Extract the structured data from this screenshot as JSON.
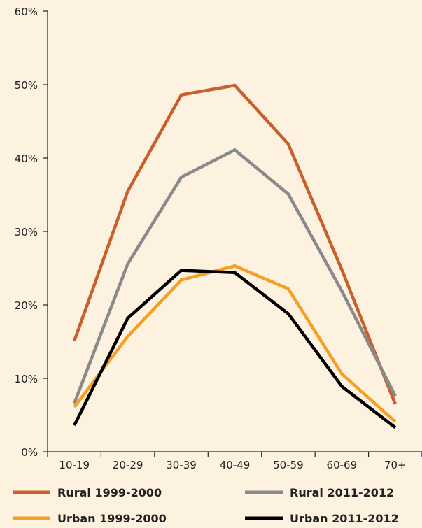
{
  "chart_data": {
    "type": "line",
    "categories": [
      "10-19",
      "20-29",
      "30-39",
      "40-49",
      "50-59",
      "60-69",
      "70+"
    ],
    "series": [
      {
        "name": "Rural 1999-2000",
        "color": "#c8602c",
        "values": [
          15.1,
          35.5,
          48.6,
          49.9,
          41.9,
          24.8,
          6.5
        ]
      },
      {
        "name": "Rural 2011-2012",
        "color": "#8a8a8a",
        "values": [
          6.6,
          25.6,
          37.4,
          41.1,
          35.1,
          21.9,
          7.6
        ]
      },
      {
        "name": "Urban 1999-2000",
        "color": "#f4a024",
        "values": [
          6.1,
          15.7,
          23.4,
          25.3,
          22.2,
          10.6,
          4.1
        ]
      },
      {
        "name": "Urban 2011-2012",
        "color": "#000000",
        "values": [
          3.6,
          18.2,
          24.7,
          24.4,
          18.8,
          8.9,
          3.3
        ]
      }
    ],
    "ylim": [
      0,
      60
    ],
    "yticks": [
      "0%",
      "10%",
      "20%",
      "30%",
      "40%",
      "50%",
      "60%"
    ],
    "title": "",
    "xlabel": "",
    "ylabel": "",
    "legend_position": "bottom",
    "grid": false
  }
}
